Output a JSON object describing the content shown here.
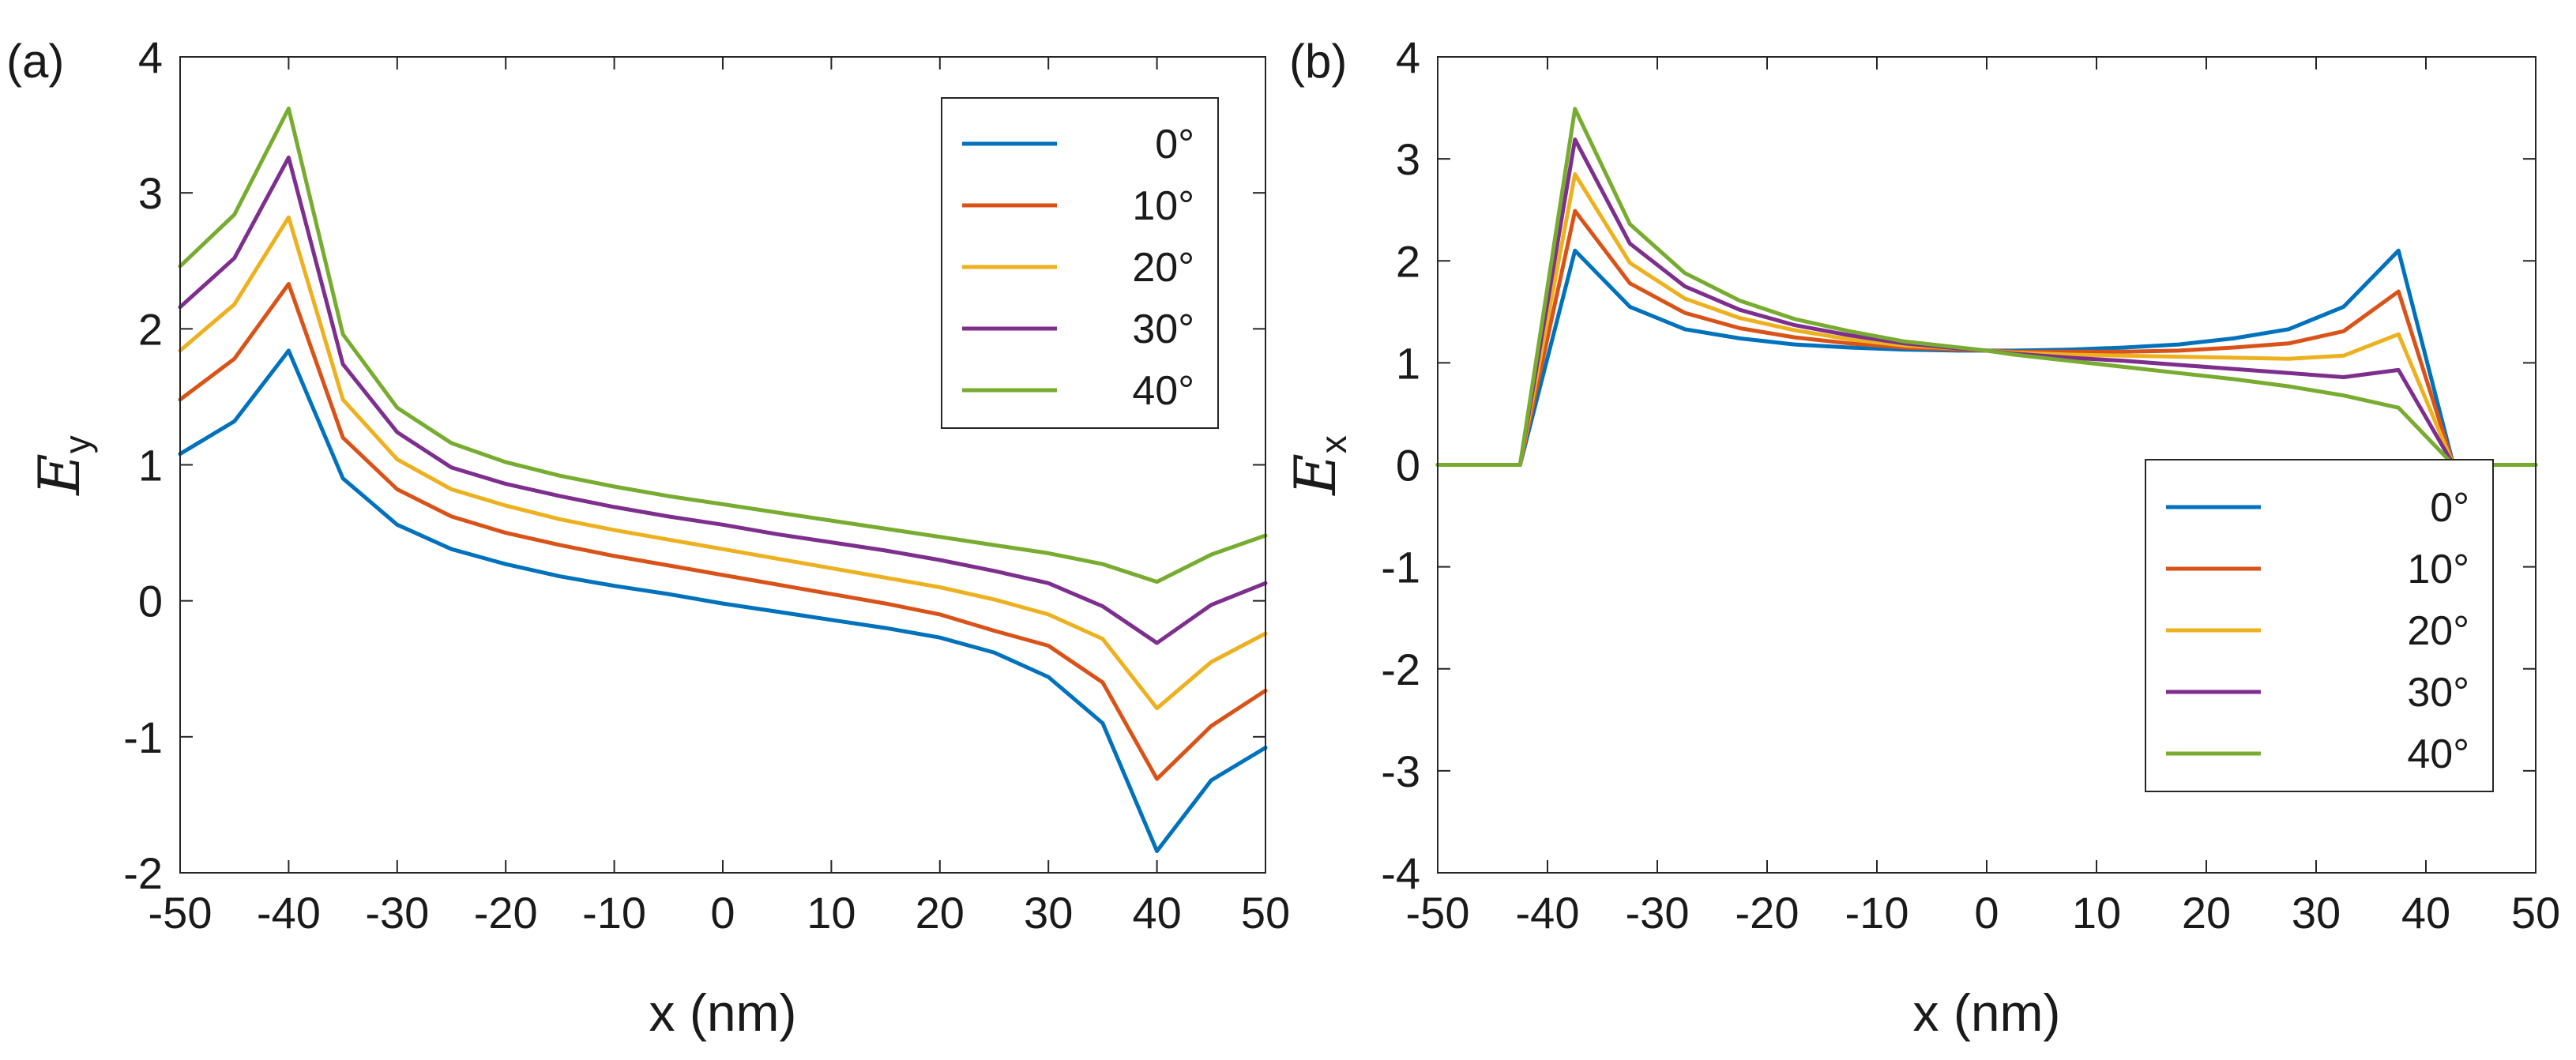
{
  "chart_data": [
    {
      "type": "line",
      "panel_label": "(a)",
      "xlabel": "x (nm)",
      "ylabel": "E",
      "ylabel_sub": "y",
      "xlim": [
        -50,
        50
      ],
      "ylim": [
        -2,
        4
      ],
      "xticks": [
        -50,
        -40,
        -30,
        -20,
        -10,
        0,
        10,
        20,
        30,
        40,
        50
      ],
      "xtick_labels": [
        "-50",
        "-40",
        "-30",
        "-20",
        "-10",
        "0",
        "10",
        "20",
        "30",
        "40",
        "50"
      ],
      "yticks": [
        -2,
        -1,
        0,
        1,
        2,
        3,
        4
      ],
      "ytick_labels": [
        "-2",
        "-1",
        "0",
        "1",
        "2",
        "3",
        "4"
      ],
      "legend_position": "top-right",
      "x": [
        -50,
        -45,
        -40,
        -35,
        -30,
        -25,
        -20,
        -15,
        -10,
        -5,
        0,
        5,
        10,
        15,
        20,
        25,
        30,
        35,
        40,
        45,
        50
      ],
      "series": [
        {
          "name": "0°",
          "color": "#0072BD",
          "values": [
            1.08,
            1.32,
            1.84,
            0.9,
            0.56,
            0.38,
            0.27,
            0.18,
            0.11,
            0.05,
            -0.02,
            -0.08,
            -0.14,
            -0.2,
            -0.27,
            -0.38,
            -0.56,
            -0.9,
            -1.84,
            -1.32,
            -1.08
          ]
        },
        {
          "name": "10°",
          "color": "#D95319",
          "values": [
            1.48,
            1.78,
            2.33,
            1.2,
            0.82,
            0.62,
            0.5,
            0.41,
            0.33,
            0.26,
            0.19,
            0.12,
            0.05,
            -0.02,
            -0.1,
            -0.22,
            -0.33,
            -0.6,
            -1.31,
            -0.92,
            -0.66
          ]
        },
        {
          "name": "20°",
          "color": "#EDB120",
          "values": [
            1.84,
            2.18,
            2.82,
            1.48,
            1.04,
            0.82,
            0.7,
            0.6,
            0.52,
            0.45,
            0.38,
            0.31,
            0.24,
            0.17,
            0.1,
            0.01,
            -0.1,
            -0.28,
            -0.79,
            -0.45,
            -0.24
          ]
        },
        {
          "name": "30°",
          "color": "#7E2F8E",
          "values": [
            2.16,
            2.52,
            3.26,
            1.74,
            1.24,
            0.98,
            0.86,
            0.77,
            0.69,
            0.62,
            0.56,
            0.49,
            0.43,
            0.37,
            0.3,
            0.22,
            0.13,
            -0.04,
            -0.31,
            -0.03,
            0.13
          ]
        },
        {
          "name": "40°",
          "color": "#77AC30",
          "values": [
            2.46,
            2.84,
            3.62,
            1.96,
            1.42,
            1.16,
            1.02,
            0.92,
            0.84,
            0.77,
            0.71,
            0.65,
            0.59,
            0.53,
            0.47,
            0.41,
            0.35,
            0.27,
            0.14,
            0.34,
            0.48
          ]
        }
      ]
    },
    {
      "type": "line",
      "panel_label": "(b)",
      "xlabel": "x (nm)",
      "ylabel": "E",
      "ylabel_sub": "x",
      "xlim": [
        -50,
        50
      ],
      "ylim": [
        -4,
        4
      ],
      "xticks": [
        -50,
        -40,
        -30,
        -20,
        -10,
        0,
        10,
        20,
        30,
        40,
        50
      ],
      "xtick_labels": [
        "-50",
        "-40",
        "-30",
        "-20",
        "-10",
        "0",
        "10",
        "20",
        "30",
        "40",
        "50"
      ],
      "yticks": [
        -4,
        -3,
        -2,
        -1,
        0,
        1,
        2,
        3,
        4
      ],
      "ytick_labels": [
        "-4",
        "-3",
        "-2",
        "-1",
        "0",
        "1",
        "2",
        "3",
        "4"
      ],
      "legend_position": "bottom-right",
      "x": [
        -50,
        -42.5,
        -37.5,
        -32.5,
        -27.5,
        -22.5,
        -17.5,
        -12.5,
        -7.5,
        -2.5,
        0,
        2.5,
        7.5,
        12.5,
        17.5,
        22.5,
        27.5,
        32.5,
        37.5,
        42.5,
        50
      ],
      "series": [
        {
          "name": "0°",
          "color": "#0072BD",
          "values": [
            0,
            0,
            2.1,
            1.55,
            1.33,
            1.24,
            1.18,
            1.15,
            1.13,
            1.12,
            1.12,
            1.12,
            1.13,
            1.15,
            1.18,
            1.24,
            1.33,
            1.55,
            2.1,
            0,
            0
          ]
        },
        {
          "name": "10°",
          "color": "#D95319",
          "values": [
            0,
            0,
            2.49,
            1.78,
            1.49,
            1.34,
            1.25,
            1.19,
            1.15,
            1.13,
            1.12,
            1.11,
            1.11,
            1.11,
            1.12,
            1.15,
            1.19,
            1.31,
            1.7,
            0,
            0
          ]
        },
        {
          "name": "20°",
          "color": "#EDB120",
          "values": [
            0,
            0,
            2.85,
            1.98,
            1.63,
            1.44,
            1.32,
            1.23,
            1.17,
            1.14,
            1.12,
            1.1,
            1.08,
            1.07,
            1.06,
            1.05,
            1.04,
            1.07,
            1.28,
            0,
            0
          ]
        },
        {
          "name": "30°",
          "color": "#7E2F8E",
          "values": [
            0,
            0,
            3.19,
            2.17,
            1.75,
            1.52,
            1.37,
            1.27,
            1.19,
            1.14,
            1.12,
            1.09,
            1.05,
            1.02,
            0.98,
            0.94,
            0.9,
            0.86,
            0.93,
            0,
            0
          ]
        },
        {
          "name": "40°",
          "color": "#77AC30",
          "values": [
            0,
            0,
            3.49,
            2.36,
            1.88,
            1.61,
            1.43,
            1.31,
            1.21,
            1.15,
            1.12,
            1.08,
            1.02,
            0.96,
            0.9,
            0.84,
            0.77,
            0.68,
            0.56,
            0,
            0
          ]
        }
      ]
    }
  ]
}
